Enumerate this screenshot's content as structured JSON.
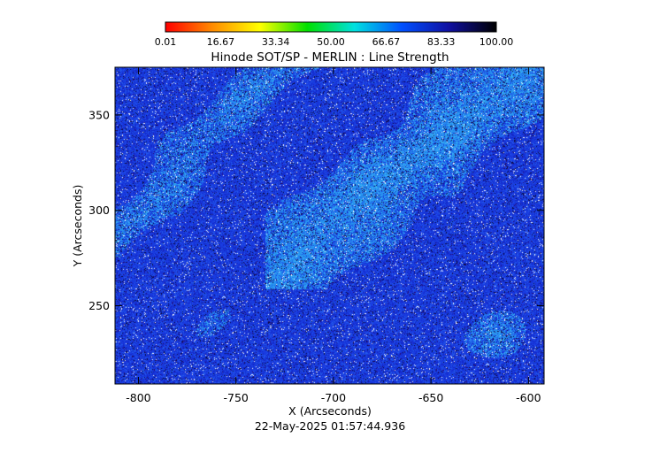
{
  "chart_data": {
    "type": "heatmap",
    "title": "Hinode SOT/SP - MERLIN : Line Strength",
    "xlabel": "X (Arcseconds)",
    "ylabel": "Y (Arcseconds)",
    "timestamp": "22-May-2025 01:57:44.936",
    "xlim": [
      -812,
      -592
    ],
    "ylim": [
      209,
      375
    ],
    "x_ticks": [
      {
        "value": -800,
        "label": "-800"
      },
      {
        "value": -750,
        "label": "-750"
      },
      {
        "value": -700,
        "label": "-700"
      },
      {
        "value": -650,
        "label": "-650"
      },
      {
        "value": -600,
        "label": "-600"
      }
    ],
    "y_ticks": [
      {
        "value": 250,
        "label": "250"
      },
      {
        "value": 300,
        "label": "300"
      },
      {
        "value": 350,
        "label": "350"
      }
    ],
    "colorbar": {
      "min": 0.01,
      "max": 100.0,
      "tick_labels": [
        "0.01",
        "16.67",
        "33.34",
        "50.00",
        "66.67",
        "83.33",
        "100.00"
      ],
      "colors": [
        "#ff0000",
        "#ff8c00",
        "#ffff00",
        "#00e000",
        "#00e0e0",
        "#0050ff",
        "#1010a0",
        "#000000"
      ]
    }
  }
}
